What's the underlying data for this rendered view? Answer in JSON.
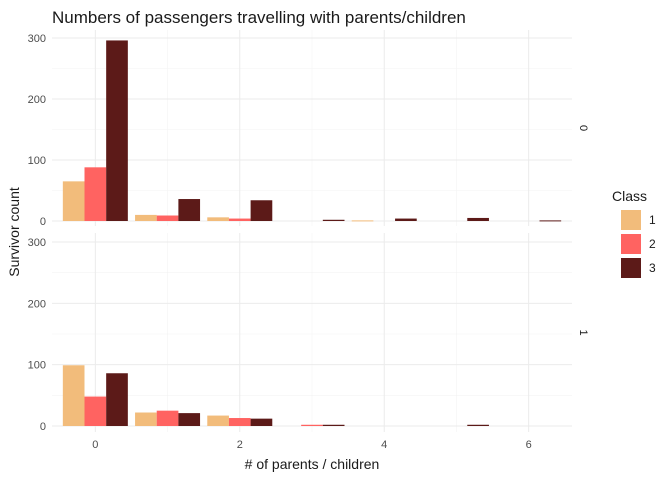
{
  "chart_data": {
    "type": "bar",
    "title": "Numbers of passengers travelling with parents/children",
    "xlabel": "# of parents / children",
    "ylabel": "Survivor count",
    "x_ticks": [
      0,
      2,
      4,
      6
    ],
    "y_ticks": [
      0,
      100,
      200,
      300
    ],
    "ylim": [
      0,
      310
    ],
    "xlim": [
      -0.6,
      6.6
    ],
    "grid": true,
    "legend": {
      "title": "Class",
      "position": "right",
      "entries": [
        {
          "label": "1",
          "color": "#F2BC7B"
        },
        {
          "label": "2",
          "color": "#FF6361"
        },
        {
          "label": "3",
          "color": "#5C1A18"
        }
      ]
    },
    "facets": [
      {
        "label": "0",
        "x": [
          0,
          1,
          2,
          3,
          4,
          5,
          6
        ],
        "series": [
          {
            "name": "1",
            "values": [
              65,
              10,
              6,
              0,
              1,
              0,
              0
            ]
          },
          {
            "name": "2",
            "values": [
              88,
              9,
              4,
              0,
              0,
              0,
              0
            ]
          },
          {
            "name": "3",
            "values": [
              296,
              36,
              34,
              2,
              4,
              5,
              1
            ]
          }
        ]
      },
      {
        "label": "1",
        "x": [
          0,
          1,
          2,
          3,
          4,
          5,
          6
        ],
        "series": [
          {
            "name": "1",
            "values": [
              99,
              22,
              17,
              0,
              0,
              0,
              0
            ]
          },
          {
            "name": "2",
            "values": [
              48,
              25,
              13,
              2,
              0,
              0,
              0
            ]
          },
          {
            "name": "3",
            "values": [
              86,
              21,
              12,
              2,
              0,
              2,
              0
            ]
          }
        ]
      }
    ]
  }
}
